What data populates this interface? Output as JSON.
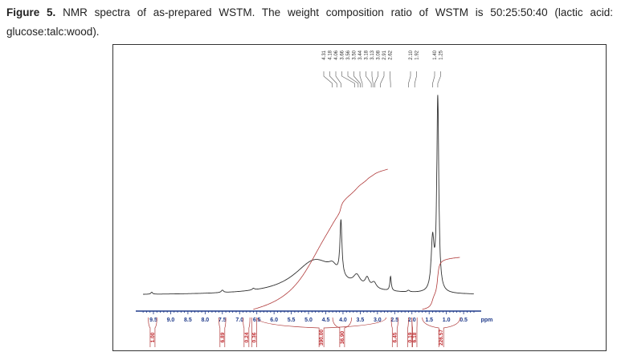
{
  "caption": {
    "label": "Figure 5.",
    "text": " NMR spectra of as-prepared WSTM. The weight composition ratio of WSTM is 50:25:50:40 (lactic acid: glucose:talc:wood)."
  },
  "chart_data": {
    "type": "line",
    "title": "",
    "xlabel": "ppm",
    "ylabel": "",
    "xlim": [
      9.8,
      0.2
    ],
    "x_reversed": true,
    "xticks": [
      "9.5",
      "9.0",
      "8.5",
      "8.0",
      "7.5",
      "7.0",
      "6.5",
      "6.0",
      "5.5",
      "5.0",
      "4.5",
      "4.0",
      "3.5",
      "3.0",
      "2.5",
      "2.0",
      "1.5",
      "1.0",
      "0.5"
    ],
    "peak_labels": [
      "4.31",
      "4.18",
      "4.06",
      "3.66",
      "3.56",
      "3.50",
      "3.44",
      "3.18",
      "3.13",
      "3.08",
      "2.91",
      "2.62",
      "2.10",
      "1.92",
      "1.40",
      "1.25"
    ],
    "spectrum_components": [
      {
        "ppm": 9.55,
        "height": 0.01,
        "width": 0.03
      },
      {
        "ppm": 7.5,
        "height": 0.012,
        "width": 0.04
      },
      {
        "ppm": 6.6,
        "height": 0.008,
        "width": 0.04
      },
      {
        "ppm": 4.8,
        "height": 0.17,
        "width": 0.75
      },
      {
        "ppm": 4.3,
        "height": 0.04,
        "width": 0.15
      },
      {
        "ppm": 4.06,
        "height": 0.27,
        "width": 0.035
      },
      {
        "ppm": 3.6,
        "height": 0.05,
        "width": 0.12
      },
      {
        "ppm": 3.3,
        "height": 0.045,
        "width": 0.07
      },
      {
        "ppm": 3.1,
        "height": 0.03,
        "width": 0.08
      },
      {
        "ppm": 2.62,
        "height": 0.07,
        "width": 0.025
      },
      {
        "ppm": 2.1,
        "height": 0.008,
        "width": 0.04
      },
      {
        "ppm": 1.4,
        "height": 0.25,
        "width": 0.05
      },
      {
        "ppm": 1.25,
        "height": 0.95,
        "width": 0.035
      }
    ],
    "integrals": [
      {
        "from": 9.65,
        "to": 9.4,
        "value": "1.00"
      },
      {
        "from": 7.6,
        "to": 7.4,
        "value": "6.89"
      },
      {
        "from": 6.9,
        "to": 6.7,
        "value": "0.24"
      },
      {
        "from": 6.65,
        "to": 6.5,
        "value": "0.36"
      },
      {
        "from": 6.5,
        "to": 2.75,
        "value": "390.00"
      },
      {
        "from": 4.3,
        "to": 3.75,
        "value": "36.90"
      },
      {
        "from": 2.6,
        "to": 2.4,
        "value": "6.45"
      },
      {
        "from": 2.1,
        "to": 2.0,
        "value": "0.19"
      },
      {
        "from": 2.0,
        "to": 1.85,
        "value": "6.18"
      },
      {
        "from": 1.7,
        "to": 0.6,
        "value": "226.57"
      }
    ],
    "colors": {
      "spectrum": "#333333",
      "integral": "#b03a3a",
      "axis": "#1f3a8a",
      "label": "#c0282d"
    }
  }
}
